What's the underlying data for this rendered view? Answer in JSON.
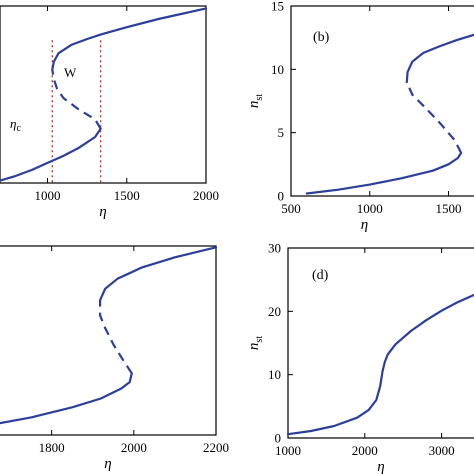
{
  "chart_data": [
    {
      "panel": "a",
      "type": "line",
      "label": "",
      "xlabel": "η",
      "ylabel": "",
      "xlim": [
        700,
        2000
      ],
      "ylim": [
        0,
        15
      ],
      "xticks": [
        "1000",
        "1500",
        "2000"
      ],
      "yticks": [],
      "grid": false,
      "series": [
        {
          "style": "solid",
          "x": [
            700,
            800,
            900,
            1000,
            1100,
            1200,
            1300,
            1335
          ],
          "y": [
            0.2,
            0.6,
            1.1,
            1.7,
            2.3,
            3.0,
            3.9,
            4.6
          ]
        },
        {
          "style": "dashed",
          "x": [
            1335,
            1300,
            1200,
            1100,
            1060,
            1040,
            1030
          ],
          "y": [
            4.6,
            5.4,
            6.2,
            7.2,
            8.0,
            8.8,
            9.6
          ]
        },
        {
          "style": "solid",
          "x": [
            1030,
            1040,
            1070,
            1150,
            1250,
            1340,
            1500,
            1700,
            2000
          ],
          "y": [
            9.6,
            10.3,
            11.0,
            11.7,
            12.2,
            12.6,
            13.2,
            13.9,
            14.8
          ]
        }
      ],
      "vlines": [
        1030,
        1335
      ],
      "annotations": [
        "W",
        "η",
        "c"
      ]
    },
    {
      "panel": "b",
      "type": "line",
      "label": "(b)",
      "xlabel": "η",
      "ylabel": "n",
      "ylabel_sub": "st",
      "xlim": [
        500,
        1700
      ],
      "ylim": [
        0,
        15
      ],
      "xticks": [
        "500",
        "1000",
        "1500"
      ],
      "yticks": [
        "0",
        "5",
        "10",
        "15"
      ],
      "grid": false,
      "series": [
        {
          "style": "solid",
          "x": [
            600,
            800,
            1000,
            1200,
            1400,
            1500,
            1560,
            1580
          ],
          "y": [
            0.2,
            0.5,
            0.9,
            1.4,
            2.0,
            2.5,
            3.0,
            3.4
          ]
        },
        {
          "style": "dashed",
          "x": [
            1580,
            1540,
            1450,
            1350,
            1270,
            1235
          ],
          "y": [
            3.4,
            4.4,
            5.7,
            7.0,
            8.0,
            9.0
          ]
        },
        {
          "style": "solid",
          "x": [
            1235,
            1240,
            1270,
            1340,
            1440,
            1550,
            1680
          ],
          "y": [
            9.0,
            9.8,
            10.6,
            11.3,
            11.8,
            12.3,
            12.8
          ]
        }
      ]
    },
    {
      "panel": "c",
      "type": "line",
      "label": ")",
      "xlabel": "η",
      "ylabel": "",
      "xlim": [
        1650,
        2200
      ],
      "ylim": [
        0,
        15
      ],
      "xticks": [
        "1800",
        "2000",
        "2200"
      ],
      "yticks": [],
      "grid": false,
      "series": [
        {
          "style": "solid",
          "x": [
            1650,
            1750,
            1850,
            1920,
            1970,
            1990,
            1995
          ],
          "y": [
            0.8,
            1.4,
            2.2,
            2.9,
            3.7,
            4.2,
            4.9
          ]
        },
        {
          "style": "dashed",
          "x": [
            1995,
            1975,
            1950,
            1930,
            1918,
            1918
          ],
          "y": [
            4.9,
            5.9,
            7.2,
            8.5,
            9.5,
            10.7
          ]
        },
        {
          "style": "solid",
          "x": [
            1918,
            1930,
            1960,
            2020,
            2100,
            2200
          ],
          "y": [
            10.7,
            11.6,
            12.4,
            13.3,
            14.1,
            14.9
          ]
        }
      ]
    },
    {
      "panel": "d",
      "type": "line",
      "label": "(d)",
      "xlabel": "η",
      "ylabel": "n",
      "ylabel_sub": "st",
      "xlim": [
        1000,
        3500
      ],
      "ylim": [
        0,
        30
      ],
      "xticks": [
        "1000",
        "2000",
        "3000"
      ],
      "yticks": [
        "0",
        "10",
        "20",
        "30"
      ],
      "grid": false,
      "series": [
        {
          "style": "solid",
          "x": [
            1000,
            1300,
            1600,
            1900,
            2050,
            2150,
            2200,
            2230,
            2260,
            2300,
            2400,
            2600,
            2800,
            3000,
            3200,
            3500
          ],
          "y": [
            0.6,
            1.1,
            1.9,
            3.2,
            4.4,
            6.0,
            8.2,
            10.5,
            12.0,
            13.2,
            14.8,
            16.9,
            18.6,
            20.1,
            21.4,
            23.0
          ]
        }
      ]
    }
  ]
}
